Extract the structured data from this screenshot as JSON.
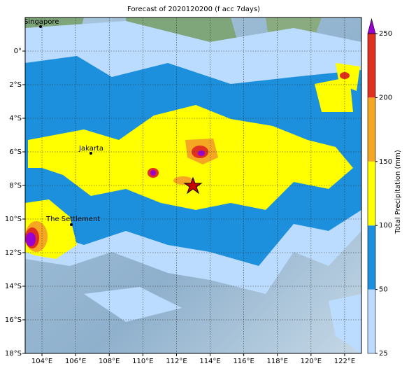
{
  "map": {
    "title": "Forecast of 2020120200 (f acc 7days)",
    "xticks": [
      {
        "value": 104,
        "label": "104°E"
      },
      {
        "value": 106,
        "label": "106°E"
      },
      {
        "value": 108,
        "label": "108°E"
      },
      {
        "value": 110,
        "label": "110°E"
      },
      {
        "value": 112,
        "label": "112°E"
      },
      {
        "value": 114,
        "label": "114°E"
      },
      {
        "value": 116,
        "label": "116°E"
      },
      {
        "value": 118,
        "label": "118°E"
      },
      {
        "value": 120,
        "label": "120°E"
      },
      {
        "value": 122,
        "label": "122°E"
      }
    ],
    "yticks": [
      {
        "value": 0,
        "label": "0°"
      },
      {
        "value": -2,
        "label": "2°S"
      },
      {
        "value": -4,
        "label": "4°S"
      },
      {
        "value": -6,
        "label": "6°S"
      },
      {
        "value": -8,
        "label": "8°S"
      },
      {
        "value": -10,
        "label": "10°S"
      },
      {
        "value": -12,
        "label": "12°S"
      },
      {
        "value": -14,
        "label": "14°S"
      },
      {
        "value": -16,
        "label": "16°S"
      },
      {
        "value": -18,
        "label": "18°S"
      }
    ],
    "grid": true,
    "places": [
      "Singapore",
      "Jakarta",
      "The Settlement"
    ],
    "colorbar": {
      "label": "Total Precipitation (mm)",
      "ticks": [
        25,
        50,
        100,
        150,
        200,
        250
      ],
      "colors": [
        "#bcdcff",
        "#1c8fdd",
        "#ffff00",
        "#f5a623",
        "#e0301e"
      ],
      "over_color": "#9a00d0"
    }
  }
}
